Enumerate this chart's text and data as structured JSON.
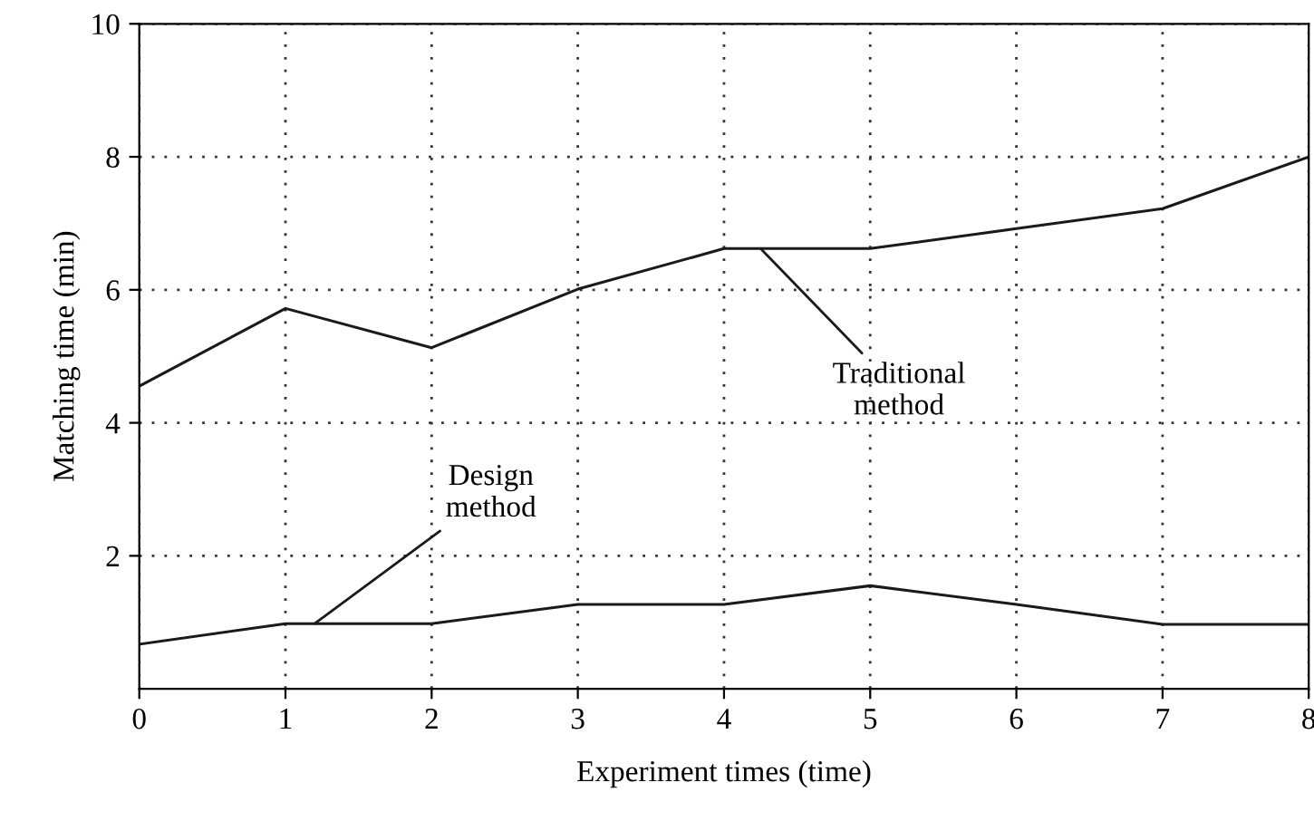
{
  "chart_data": {
    "type": "line",
    "xlabel": "Experiment times (time)",
    "ylabel": "Matching time (min)",
    "x": [
      0,
      1,
      2,
      3,
      4,
      5,
      6,
      7,
      8
    ],
    "series": [
      {
        "color": "#1a1a1a",
        "values": [
          4.55,
          5.72,
          5.13,
          6.01,
          6.62,
          6.62,
          6.92,
          7.22,
          8.0
        ]
      },
      {
        "color": "#1a1a1a",
        "values": [
          0.67,
          0.98,
          0.98,
          1.27,
          1.27,
          1.55,
          1.27,
          0.97,
          0.97
        ]
      }
    ],
    "annotations": [
      {
        "text": "Design\nmethod",
        "x": 1.2,
        "y": 0.98
      },
      {
        "text": "Traditional\nmethod",
        "x": 4.25,
        "y": 6.62
      }
    ],
    "xlim": [
      0,
      8
    ],
    "ylim": [
      0,
      10
    ],
    "xticks": [
      0,
      1,
      2,
      3,
      4,
      5,
      6,
      7,
      8
    ],
    "yticks": [
      2,
      4,
      6,
      8,
      10
    ],
    "grid": true,
    "line_style": "solid",
    "marker": "none"
  }
}
